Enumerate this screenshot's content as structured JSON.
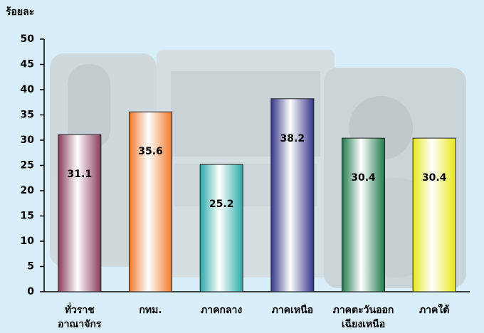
{
  "chart_data": {
    "type": "bar",
    "y_label": "ร้อยละ",
    "categories": [
      "ทั่วราช\nอาณาจักร",
      "กทม.",
      "ภาคกลาง",
      "ภาคเหนือ",
      "ภาคตะวันออก\nเฉียงเหนือ",
      "ภาคใต้"
    ],
    "values": [
      31.1,
      35.6,
      25.2,
      38.2,
      30.4,
      30.4
    ],
    "colors": [
      "#8a3a5c",
      "#f07a2a",
      "#2aa8a8",
      "#34348a",
      "#1f7a4a",
      "#e8e81a"
    ],
    "ylim": [
      0,
      50
    ],
    "yticks": [
      0,
      5,
      10,
      15,
      20,
      25,
      30,
      35,
      40,
      45,
      50
    ],
    "grid": false
  }
}
